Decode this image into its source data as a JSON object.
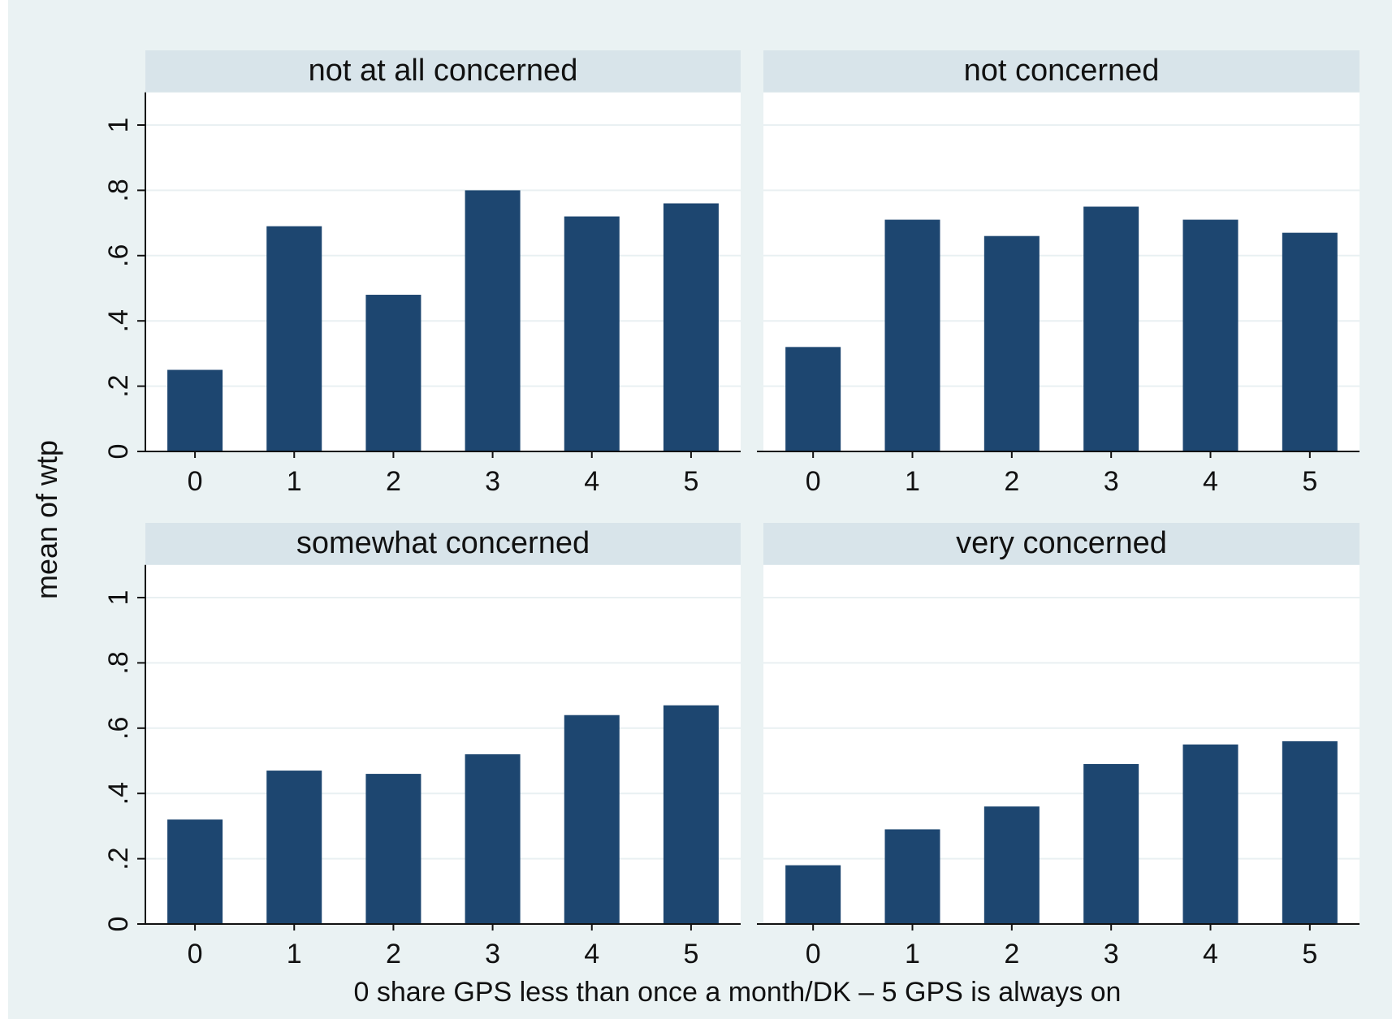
{
  "title": "",
  "chart_data": {
    "type": "bar",
    "categories": [
      "0",
      "1",
      "2",
      "3",
      "4",
      "5"
    ],
    "ylabel": "mean of wtp",
    "xlabel": "0 share GPS less than once a month/DK – 5 GPS is always on",
    "ylim": [
      0,
      1.1
    ],
    "yticks": [
      0,
      0.2,
      0.4,
      0.6,
      0.8,
      1
    ],
    "ytick_labels": [
      "0",
      ".2",
      ".4",
      ".6",
      ".8",
      "1"
    ],
    "grid": true,
    "bar_color": "#1d4670",
    "panels": [
      {
        "title": "not at all concerned",
        "values": [
          0.25,
          0.69,
          0.48,
          0.8,
          0.72,
          0.76
        ]
      },
      {
        "title": "not concerned",
        "values": [
          0.32,
          0.71,
          0.66,
          0.75,
          0.71,
          0.67
        ]
      },
      {
        "title": "somewhat concerned",
        "values": [
          0.32,
          0.47,
          0.46,
          0.52,
          0.64,
          0.67
        ]
      },
      {
        "title": "very concerned",
        "values": [
          0.18,
          0.29,
          0.36,
          0.49,
          0.55,
          0.56
        ]
      }
    ]
  }
}
